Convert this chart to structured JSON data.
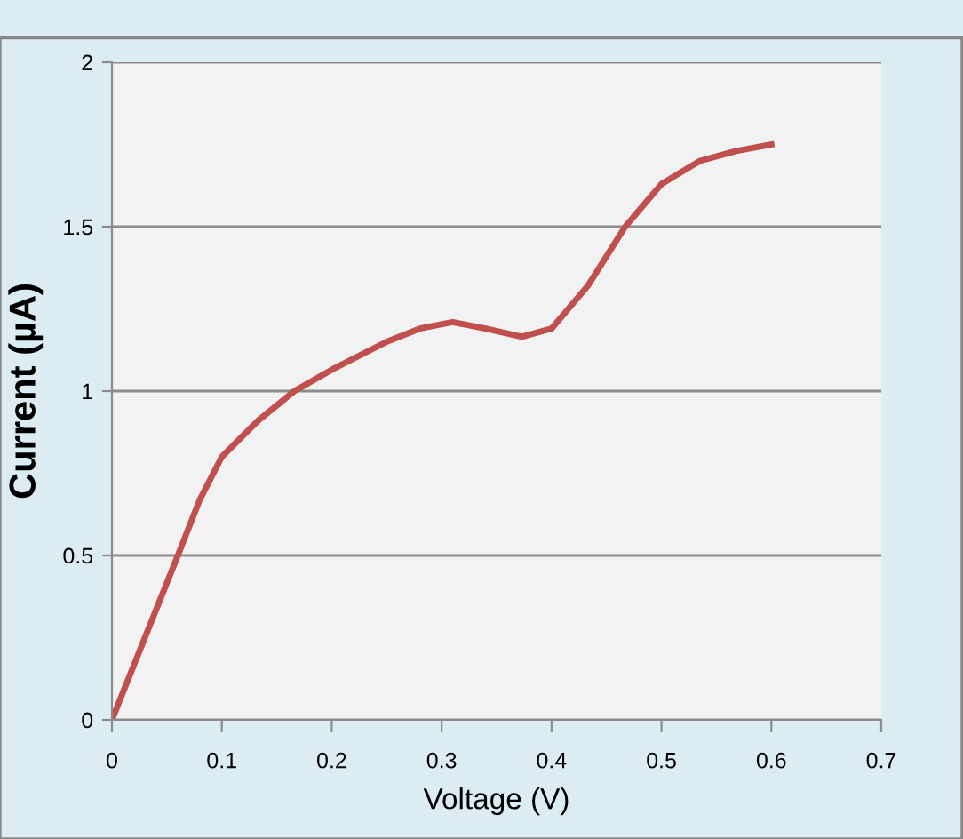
{
  "chart_data": {
    "type": "line",
    "xlabel": "Voltage (V)",
    "ylabel": "Current (µA)",
    "x": [
      0,
      0.03,
      0.06,
      0.08,
      0.1,
      0.133,
      0.166,
      0.2,
      0.25,
      0.28,
      0.31,
      0.34,
      0.373,
      0.4,
      0.433,
      0.467,
      0.5,
      0.535,
      0.568,
      0.6
    ],
    "series": [
      {
        "color": "#c0504d",
        "values": [
          0,
          0.25,
          0.5,
          0.67,
          0.8,
          0.91,
          1.0,
          1.065,
          1.15,
          1.19,
          1.21,
          1.19,
          1.165,
          1.19,
          1.32,
          1.5,
          1.63,
          1.7,
          1.73,
          1.75
        ]
      }
    ],
    "xlim": [
      0,
      0.7
    ],
    "xticks": [
      0,
      0.1,
      0.2,
      0.3,
      0.4,
      0.5,
      0.6,
      0.7
    ],
    "ylim": [
      0,
      2
    ],
    "yticks": [
      0,
      0.5,
      1,
      1.5,
      2
    ],
    "grid": "y",
    "marker": "none",
    "line_style": "solid"
  }
}
